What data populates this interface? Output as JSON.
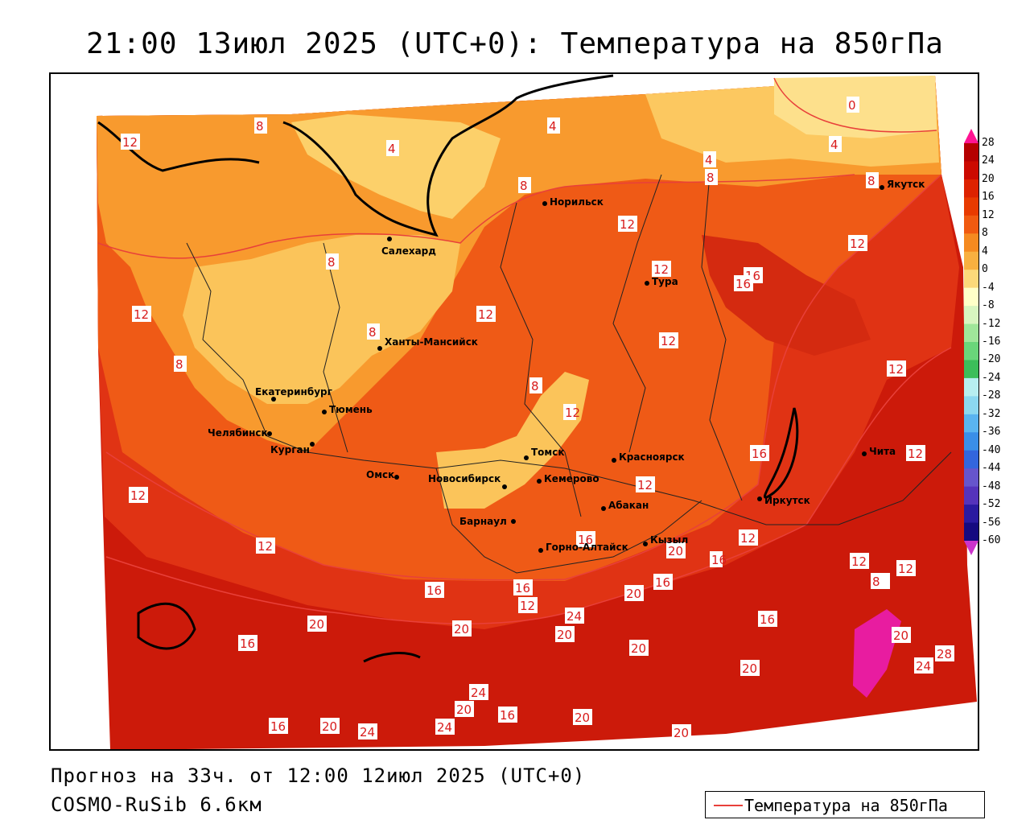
{
  "title": "21:00 13июл 2025 (UTC+0): Температура на 850гПа",
  "footer": {
    "forecast": "Прогноз на 33ч. от 12:00 12июл 2025 (UTC+0)",
    "model": "COSMO-RuSib 6.6км"
  },
  "legend": {
    "label": "Температура на 850гПа",
    "line_color": "#e8403a"
  },
  "colorbar": {
    "ticks": [
      "28",
      "24",
      "20",
      "16",
      "12",
      "8",
      "4",
      "0",
      "-4",
      "-8",
      "-12",
      "-16",
      "-20",
      "-24",
      "-28",
      "-32",
      "-36",
      "-40",
      "-44",
      "-48",
      "-52",
      "-56",
      "-60"
    ],
    "colors": [
      "#ff1493",
      "#b50000",
      "#cc0a00",
      "#dd2200",
      "#e83a00",
      "#f05a10",
      "#f58a20",
      "#f8b040",
      "#fcd97a",
      "#ffffc8",
      "#d8f5c0",
      "#a0e69a",
      "#6ad67a",
      "#3cbe5a",
      "#b7eef0",
      "#8cd8f0",
      "#5ab4f0",
      "#3a8ee8",
      "#3366dd",
      "#6655cc",
      "#5533bb",
      "#2a1aa0",
      "#150a80",
      "#cc33cc"
    ]
  },
  "cities": [
    {
      "name": "Якутск"
    },
    {
      "name": "Норильск"
    },
    {
      "name": "Салехард"
    },
    {
      "name": "Тура"
    },
    {
      "name": "Ханты-Мансийск"
    },
    {
      "name": "Екатеринбург"
    },
    {
      "name": "Тюмень"
    },
    {
      "name": "Челябинск"
    },
    {
      "name": "Курган"
    },
    {
      "name": "Омск"
    },
    {
      "name": "Томск"
    },
    {
      "name": "Новосибирск"
    },
    {
      "name": "Кемерово"
    },
    {
      "name": "Красноярск"
    },
    {
      "name": "Абакан"
    },
    {
      "name": "Барнаул"
    },
    {
      "name": "Горно-Алтайск"
    },
    {
      "name": "Кызыл"
    },
    {
      "name": "Иркутск"
    },
    {
      "name": "Чита"
    }
  ],
  "contour_labels": [
    "12",
    "8",
    "4",
    "4",
    "8",
    "8",
    "8",
    "4",
    "0",
    "4",
    "12",
    "12",
    "12",
    "16",
    "16",
    "12",
    "8",
    "12",
    "8",
    "12",
    "12",
    "8",
    "8",
    "12",
    "16",
    "12",
    "12",
    "12",
    "12",
    "16",
    "20",
    "12",
    "16",
    "12",
    "12",
    "8",
    "16",
    "16",
    "12",
    "16",
    "20",
    "24",
    "20",
    "16",
    "20",
    "20",
    "16",
    "20",
    "20",
    "28",
    "24",
    "20",
    "24",
    "20",
    "16",
    "20",
    "16",
    "20",
    "24",
    "24",
    "20",
    "16",
    "20",
    "16"
  ],
  "colors": {
    "map_frame": "#000000",
    "contour": "#e8403a",
    "label_text": "#d81c1c"
  }
}
